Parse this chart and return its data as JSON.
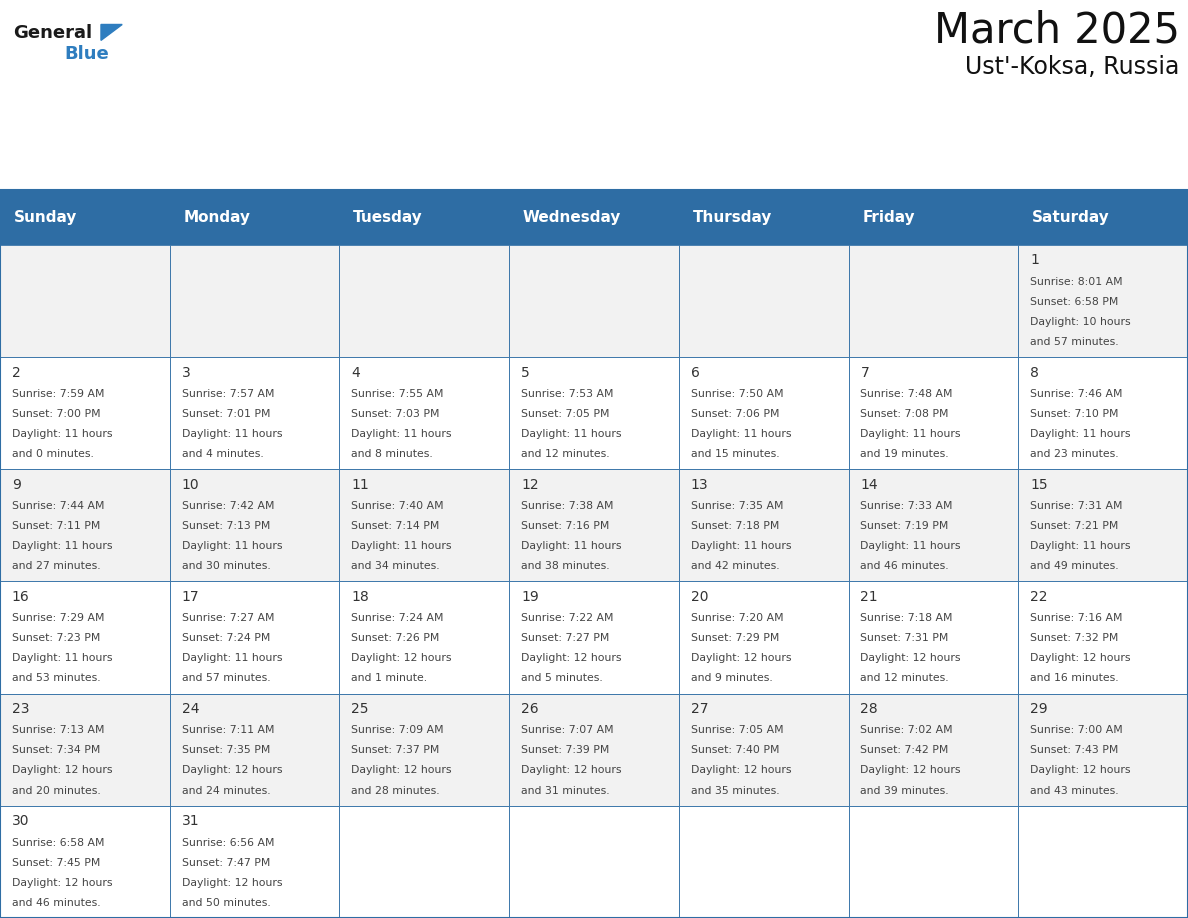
{
  "title": "March 2025",
  "subtitle": "Ust'-Koksa, Russia",
  "header_bg": "#2E6DA4",
  "header_text_color": "#FFFFFF",
  "day_names": [
    "Sunday",
    "Monday",
    "Tuesday",
    "Wednesday",
    "Thursday",
    "Friday",
    "Saturday"
  ],
  "cell_bg_odd": "#F2F2F2",
  "cell_bg_even": "#FFFFFF",
  "cell_border_color": "#2E6DA4",
  "day_num_color": "#333333",
  "text_color": "#444444",
  "logo_general_color": "#1A1A1A",
  "logo_blue_color": "#2E7DBF",
  "days": [
    {
      "day": 1,
      "col": 6,
      "row": 0,
      "sunrise": "8:01 AM",
      "sunset": "6:58 PM",
      "daylight": "10 hours and 57 minutes."
    },
    {
      "day": 2,
      "col": 0,
      "row": 1,
      "sunrise": "7:59 AM",
      "sunset": "7:00 PM",
      "daylight": "11 hours and 0 minutes."
    },
    {
      "day": 3,
      "col": 1,
      "row": 1,
      "sunrise": "7:57 AM",
      "sunset": "7:01 PM",
      "daylight": "11 hours and 4 minutes."
    },
    {
      "day": 4,
      "col": 2,
      "row": 1,
      "sunrise": "7:55 AM",
      "sunset": "7:03 PM",
      "daylight": "11 hours and 8 minutes."
    },
    {
      "day": 5,
      "col": 3,
      "row": 1,
      "sunrise": "7:53 AM",
      "sunset": "7:05 PM",
      "daylight": "11 hours and 12 minutes."
    },
    {
      "day": 6,
      "col": 4,
      "row": 1,
      "sunrise": "7:50 AM",
      "sunset": "7:06 PM",
      "daylight": "11 hours and 15 minutes."
    },
    {
      "day": 7,
      "col": 5,
      "row": 1,
      "sunrise": "7:48 AM",
      "sunset": "7:08 PM",
      "daylight": "11 hours and 19 minutes."
    },
    {
      "day": 8,
      "col": 6,
      "row": 1,
      "sunrise": "7:46 AM",
      "sunset": "7:10 PM",
      "daylight": "11 hours and 23 minutes."
    },
    {
      "day": 9,
      "col": 0,
      "row": 2,
      "sunrise": "7:44 AM",
      "sunset": "7:11 PM",
      "daylight": "11 hours and 27 minutes."
    },
    {
      "day": 10,
      "col": 1,
      "row": 2,
      "sunrise": "7:42 AM",
      "sunset": "7:13 PM",
      "daylight": "11 hours and 30 minutes."
    },
    {
      "day": 11,
      "col": 2,
      "row": 2,
      "sunrise": "7:40 AM",
      "sunset": "7:14 PM",
      "daylight": "11 hours and 34 minutes."
    },
    {
      "day": 12,
      "col": 3,
      "row": 2,
      "sunrise": "7:38 AM",
      "sunset": "7:16 PM",
      "daylight": "11 hours and 38 minutes."
    },
    {
      "day": 13,
      "col": 4,
      "row": 2,
      "sunrise": "7:35 AM",
      "sunset": "7:18 PM",
      "daylight": "11 hours and 42 minutes."
    },
    {
      "day": 14,
      "col": 5,
      "row": 2,
      "sunrise": "7:33 AM",
      "sunset": "7:19 PM",
      "daylight": "11 hours and 46 minutes."
    },
    {
      "day": 15,
      "col": 6,
      "row": 2,
      "sunrise": "7:31 AM",
      "sunset": "7:21 PM",
      "daylight": "11 hours and 49 minutes."
    },
    {
      "day": 16,
      "col": 0,
      "row": 3,
      "sunrise": "7:29 AM",
      "sunset": "7:23 PM",
      "daylight": "11 hours and 53 minutes."
    },
    {
      "day": 17,
      "col": 1,
      "row": 3,
      "sunrise": "7:27 AM",
      "sunset": "7:24 PM",
      "daylight": "11 hours and 57 minutes."
    },
    {
      "day": 18,
      "col": 2,
      "row": 3,
      "sunrise": "7:24 AM",
      "sunset": "7:26 PM",
      "daylight": "12 hours and 1 minute."
    },
    {
      "day": 19,
      "col": 3,
      "row": 3,
      "sunrise": "7:22 AM",
      "sunset": "7:27 PM",
      "daylight": "12 hours and 5 minutes."
    },
    {
      "day": 20,
      "col": 4,
      "row": 3,
      "sunrise": "7:20 AM",
      "sunset": "7:29 PM",
      "daylight": "12 hours and 9 minutes."
    },
    {
      "day": 21,
      "col": 5,
      "row": 3,
      "sunrise": "7:18 AM",
      "sunset": "7:31 PM",
      "daylight": "12 hours and 12 minutes."
    },
    {
      "day": 22,
      "col": 6,
      "row": 3,
      "sunrise": "7:16 AM",
      "sunset": "7:32 PM",
      "daylight": "12 hours and 16 minutes."
    },
    {
      "day": 23,
      "col": 0,
      "row": 4,
      "sunrise": "7:13 AM",
      "sunset": "7:34 PM",
      "daylight": "12 hours and 20 minutes."
    },
    {
      "day": 24,
      "col": 1,
      "row": 4,
      "sunrise": "7:11 AM",
      "sunset": "7:35 PM",
      "daylight": "12 hours and 24 minutes."
    },
    {
      "day": 25,
      "col": 2,
      "row": 4,
      "sunrise": "7:09 AM",
      "sunset": "7:37 PM",
      "daylight": "12 hours and 28 minutes."
    },
    {
      "day": 26,
      "col": 3,
      "row": 4,
      "sunrise": "7:07 AM",
      "sunset": "7:39 PM",
      "daylight": "12 hours and 31 minutes."
    },
    {
      "day": 27,
      "col": 4,
      "row": 4,
      "sunrise": "7:05 AM",
      "sunset": "7:40 PM",
      "daylight": "12 hours and 35 minutes."
    },
    {
      "day": 28,
      "col": 5,
      "row": 4,
      "sunrise": "7:02 AM",
      "sunset": "7:42 PM",
      "daylight": "12 hours and 39 minutes."
    },
    {
      "day": 29,
      "col": 6,
      "row": 4,
      "sunrise": "7:00 AM",
      "sunset": "7:43 PM",
      "daylight": "12 hours and 43 minutes."
    },
    {
      "day": 30,
      "col": 0,
      "row": 5,
      "sunrise": "6:58 AM",
      "sunset": "7:45 PM",
      "daylight": "12 hours and 46 minutes."
    },
    {
      "day": 31,
      "col": 1,
      "row": 5,
      "sunrise": "6:56 AM",
      "sunset": "7:47 PM",
      "daylight": "12 hours and 50 minutes."
    }
  ]
}
